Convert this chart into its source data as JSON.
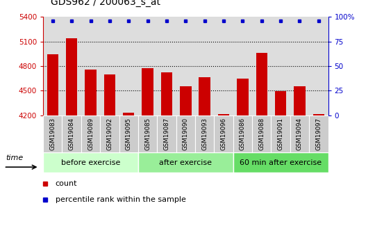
{
  "title": "GDS962 / 200063_s_at",
  "samples": [
    "GSM19083",
    "GSM19084",
    "GSM19089",
    "GSM19092",
    "GSM19095",
    "GSM19085",
    "GSM19087",
    "GSM19090",
    "GSM19093",
    "GSM19096",
    "GSM19086",
    "GSM19088",
    "GSM19091",
    "GSM19094",
    "GSM19097"
  ],
  "bar_values": [
    4940,
    5140,
    4760,
    4700,
    4230,
    4770,
    4720,
    4555,
    4660,
    4210,
    4650,
    4960,
    4490,
    4550,
    4215
  ],
  "bar_color": "#cc0000",
  "percentile_color": "#0000cc",
  "ylim_left": [
    4200,
    5400
  ],
  "ylim_right": [
    0,
    100
  ],
  "yticks_left": [
    4200,
    4500,
    4800,
    5100,
    5400
  ],
  "yticks_right": [
    0,
    25,
    50,
    75,
    100
  ],
  "ytick_labels_right": [
    "0",
    "25",
    "50",
    "75",
    "100%"
  ],
  "grid_dotted_at": [
    4500,
    4800,
    5100
  ],
  "groups": [
    {
      "label": "before exercise",
      "start": 0,
      "end": 5,
      "color": "#ccffcc"
    },
    {
      "label": "after exercise",
      "start": 5,
      "end": 10,
      "color": "#99ee99"
    },
    {
      "label": "60 min after exercise",
      "start": 10,
      "end": 15,
      "color": "#66dd66"
    }
  ],
  "time_label": "time",
  "legend_count_label": "count",
  "legend_percentile_label": "percentile rank within the sample",
  "bar_width": 0.6,
  "plot_bg_color": "#dddddd",
  "sample_box_color": "#cccccc",
  "fig_bg_color": "#ffffff"
}
